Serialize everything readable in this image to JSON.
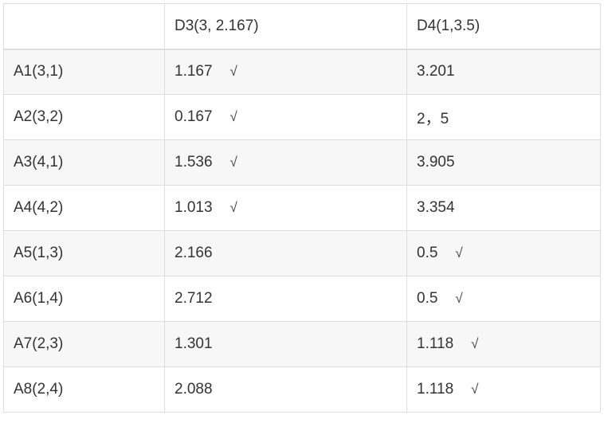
{
  "table": {
    "headers": [
      "",
      "D3(3, 2.167)",
      "D4(1,3.5)"
    ],
    "rows": [
      {
        "label": "A1(3,1)",
        "d3": "1.167",
        "d3_mark": "√",
        "d4": "3.201",
        "d4_mark": ""
      },
      {
        "label": "A2(3,2)",
        "d3": "0.167",
        "d3_mark": "√",
        "d4": "2，5",
        "d4_mark": ""
      },
      {
        "label": "A3(4,1)",
        "d3": "1.536",
        "d3_mark": "√",
        "d4": "3.905",
        "d4_mark": ""
      },
      {
        "label": "A4(4,2)",
        "d3": "1.013",
        "d3_mark": "√",
        "d4": "3.354",
        "d4_mark": ""
      },
      {
        "label": "A5(1,3)",
        "d3": "2.166",
        "d3_mark": "",
        "d4": "0.5",
        "d4_mark": "√"
      },
      {
        "label": "A6(1,4)",
        "d3": "2.712",
        "d3_mark": "",
        "d4": "0.5",
        "d4_mark": "√"
      },
      {
        "label": "A7(2,3)",
        "d3": "1.301",
        "d3_mark": "",
        "d4": "1.118",
        "d4_mark": "√"
      },
      {
        "label": "A8(2,4)",
        "d3": "2.088",
        "d3_mark": "",
        "d4": "1.118",
        "d4_mark": "√"
      }
    ]
  }
}
